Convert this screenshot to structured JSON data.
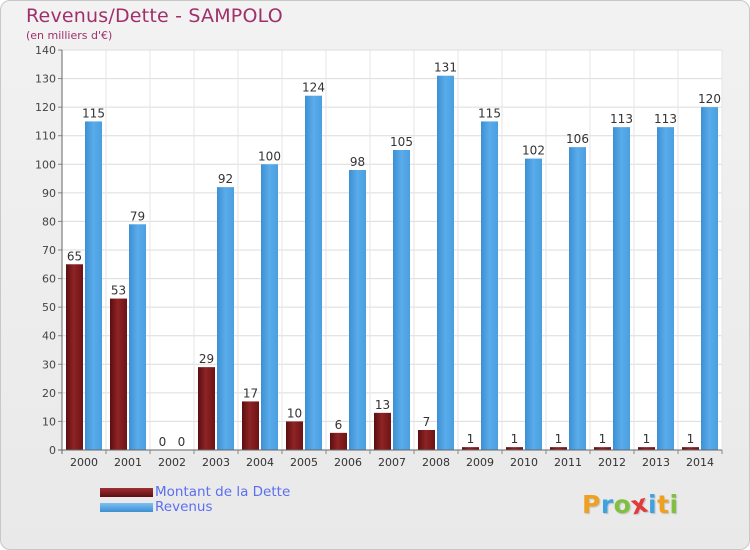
{
  "header": {
    "title": "Revenus/Dette - SAMPOLO",
    "subtitle": "(en milliers d'€)"
  },
  "legend": {
    "items": [
      {
        "label": "Montant de la Dette",
        "color": "#7b1416"
      },
      {
        "label": "Revenus",
        "color": "#4a9fe0"
      }
    ]
  },
  "logo": {
    "text": "Proxiti",
    "letters": [
      "P",
      "r",
      "o",
      "x",
      "i",
      "t",
      "i"
    ],
    "colors": [
      "#f0a020",
      "#3fa2e0",
      "#80c040",
      "#e03a3a",
      "#3fa2e0",
      "#f0a020",
      "#80c040"
    ]
  },
  "chart_data": {
    "type": "bar",
    "title": "Revenus/Dette - SAMPOLO",
    "subtitle": "(en milliers d'€)",
    "categories": [
      "2000",
      "2001",
      "2002",
      "2003",
      "2004",
      "2005",
      "2006",
      "2007",
      "2008",
      "2009",
      "2010",
      "2011",
      "2012",
      "2013",
      "2014"
    ],
    "series": [
      {
        "name": "Montant de la Dette",
        "color": "#7b1416",
        "values": [
          65,
          53,
          0,
          29,
          17,
          10,
          6,
          13,
          7,
          1,
          1,
          1,
          1,
          1,
          1
        ]
      },
      {
        "name": "Revenus",
        "color": "#4a9fe0",
        "values": [
          115,
          79,
          0,
          92,
          100,
          124,
          98,
          105,
          131,
          115,
          102,
          106,
          113,
          113,
          120
        ]
      }
    ],
    "ylim": [
      0,
      140
    ],
    "yticks": [
      0,
      10,
      20,
      30,
      40,
      50,
      60,
      70,
      80,
      90,
      100,
      110,
      120,
      130,
      140
    ],
    "grid": true,
    "legend_position": "bottom-left"
  }
}
